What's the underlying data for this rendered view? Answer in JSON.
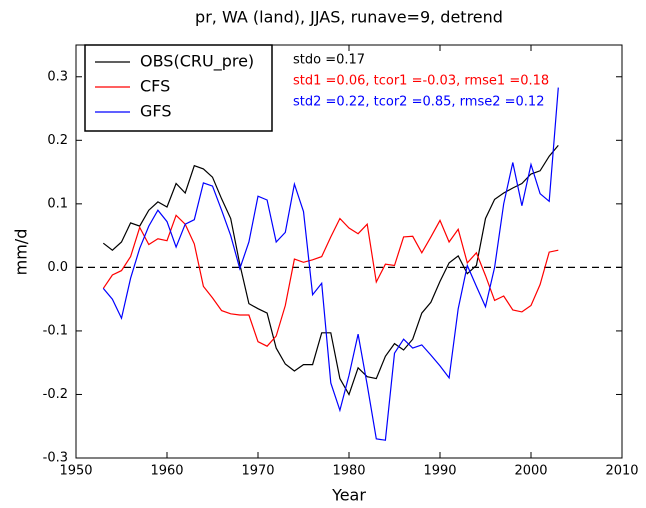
{
  "chart_data": {
    "type": "line",
    "title": "pr, WA (land), JJAS, runave=9, detrend",
    "xlabel": "Year",
    "ylabel": "mm/d",
    "x": [
      1953,
      1954,
      1955,
      1956,
      1957,
      1958,
      1959,
      1960,
      1961,
      1962,
      1963,
      1964,
      1965,
      1966,
      1967,
      1968,
      1969,
      1970,
      1971,
      1972,
      1973,
      1974,
      1975,
      1976,
      1977,
      1978,
      1979,
      1980,
      1981,
      1982,
      1983,
      1984,
      1985,
      1986,
      1987,
      1988,
      1989,
      1990,
      1991,
      1992,
      1993,
      1994,
      1995,
      1996,
      1997,
      1998,
      1999,
      2000,
      2001,
      2002,
      2003
    ],
    "series": [
      {
        "name": "OBS(CRU_pre)",
        "color": "#000000",
        "values": [
          0.038,
          0.027,
          0.04,
          0.07,
          0.065,
          0.09,
          0.103,
          0.095,
          0.132,
          0.117,
          0.16,
          0.155,
          0.142,
          0.108,
          0.077,
          0.005,
          -0.057,
          -0.065,
          -0.072,
          -0.127,
          -0.152,
          -0.163,
          -0.153,
          -0.153,
          -0.103,
          -0.103,
          -0.175,
          -0.2,
          -0.158,
          -0.172,
          -0.175,
          -0.14,
          -0.12,
          -0.13,
          -0.113,
          -0.072,
          -0.055,
          -0.022,
          0.007,
          0.018,
          -0.01,
          0.003,
          0.077,
          0.107,
          0.117,
          0.125,
          0.132,
          0.147,
          0.152,
          0.175,
          0.192
        ]
      },
      {
        "name": "CFS",
        "color": "#ff0000",
        "values": [
          -0.033,
          -0.012,
          -0.005,
          0.017,
          0.063,
          0.036,
          0.045,
          0.042,
          0.082,
          0.068,
          0.037,
          -0.03,
          -0.048,
          -0.068,
          -0.073,
          -0.075,
          -0.075,
          -0.117,
          -0.124,
          -0.108,
          -0.06,
          0.013,
          0.008,
          0.012,
          0.017,
          0.048,
          0.077,
          0.062,
          0.053,
          0.068,
          -0.023,
          0.005,
          0.003,
          0.048,
          0.049,
          0.023,
          0.048,
          0.074,
          0.04,
          0.06,
          0.007,
          0.023,
          -0.013,
          -0.052,
          -0.045,
          -0.067,
          -0.07,
          -0.06,
          -0.027,
          0.024,
          0.027
        ]
      },
      {
        "name": "GFS",
        "color": "#0000ff",
        "values": [
          -0.033,
          -0.05,
          -0.08,
          -0.017,
          0.03,
          0.065,
          0.09,
          0.072,
          0.032,
          0.068,
          0.075,
          0.133,
          0.128,
          0.09,
          0.05,
          -0.002,
          0.04,
          0.112,
          0.106,
          0.04,
          0.055,
          0.131,
          0.088,
          -0.043,
          -0.025,
          -0.182,
          -0.225,
          -0.17,
          -0.105,
          -0.185,
          -0.27,
          -0.272,
          -0.135,
          -0.113,
          -0.127,
          -0.122,
          -0.138,
          -0.155,
          -0.174,
          -0.065,
          0.003,
          -0.03,
          -0.062,
          0.0,
          0.1,
          0.165,
          0.097,
          0.162,
          0.116,
          0.104,
          0.283
        ]
      }
    ],
    "annotations": [
      {
        "text": "stdo =0.17",
        "color": "#000000"
      },
      {
        "text": "std1 =0.06, tcor1 =-0.03, rmse1 =0.18",
        "color": "#ff0000"
      },
      {
        "text": "std2 =0.22, tcor2 =0.85, rmse2 =0.12",
        "color": "#0000ff"
      }
    ],
    "reference_line": 0,
    "xlim": [
      1950,
      2010
    ],
    "xticks": [
      1950,
      1960,
      1970,
      1980,
      1990,
      2000,
      2010
    ],
    "ylim": [
      -0.3,
      0.35
    ],
    "yticks": [
      -0.3,
      -0.2,
      -0.1,
      0.0,
      0.1,
      0.2,
      0.3
    ],
    "legend": "upper left"
  }
}
